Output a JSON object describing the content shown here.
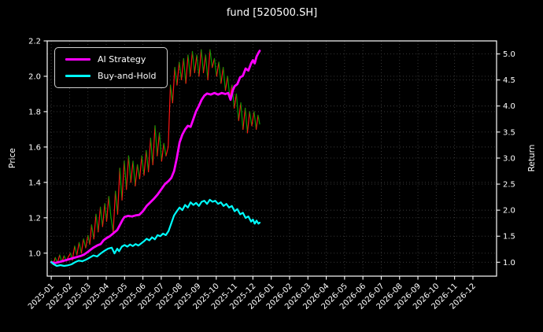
{
  "title": "fund [520500.SH]",
  "chart_data": {
    "type": "line",
    "title": "fund [520500.SH]",
    "background_color": "#000000",
    "text_color": "#ffffff",
    "grid_color": "#3d3d3d",
    "spine_color": "#ffffff",
    "grid": "on",
    "legend_position": "upper left",
    "x_axis": {
      "unit": "months since 2025-01",
      "range": [
        -0.22,
        24.29
      ],
      "tick_labels": [
        "2025-01",
        "2025-02",
        "2025-03",
        "2025-04",
        "2025-05",
        "2025-06",
        "2025-07",
        "2025-08",
        "2025-09",
        "2025-10",
        "2025-11",
        "2025-12",
        "2026-01",
        "2026-02",
        "2026-03",
        "2026-04",
        "2026-05",
        "2026-06",
        "2026-07",
        "2026-08",
        "2026-09",
        "2026-10",
        "2026-11",
        "2026-12"
      ]
    },
    "left_axis": {
      "label": "Price",
      "range": [
        0.87,
        2.2
      ],
      "ticks": [
        1.0,
        1.2,
        1.4,
        1.6,
        1.8,
        2.0,
        2.2
      ],
      "tick_labels": [
        "1.0",
        "1.2",
        "1.4",
        "1.6",
        "1.8",
        "2.0",
        "2.2"
      ]
    },
    "right_axis": {
      "label": "Return",
      "range": [
        0.733,
        5.25
      ],
      "ticks": [
        1.0,
        1.5,
        2.0,
        2.5,
        3.0,
        3.5,
        4.0,
        4.5,
        5.0
      ],
      "tick_labels": [
        "1.0",
        "1.5",
        "2.0",
        "2.5",
        "3.0",
        "3.5",
        "4.0",
        "4.5",
        "5.0"
      ]
    },
    "series": [
      {
        "name": "price",
        "axis": "left",
        "style": "updown",
        "up_color": "#ff1414",
        "down_color": "#00a000",
        "width": 1.2,
        "points": [
          [
            0,
            0.96
          ],
          [
            0.1,
            0.935
          ],
          [
            0.22,
            0.975
          ],
          [
            0.34,
            0.945
          ],
          [
            0.46,
            0.99
          ],
          [
            0.58,
            0.95
          ],
          [
            0.7,
            0.985
          ],
          [
            0.82,
            0.955
          ],
          [
            0.94,
            0.98
          ],
          [
            1.05,
            1.0
          ],
          [
            1.15,
            0.96
          ],
          [
            1.28,
            1.04
          ],
          [
            1.4,
            0.99
          ],
          [
            1.52,
            1.06
          ],
          [
            1.64,
            1.0
          ],
          [
            1.76,
            1.08
          ],
          [
            1.88,
            1.03
          ],
          [
            2.0,
            1.1
          ],
          [
            2.1,
            1.05
          ],
          [
            2.2,
            1.16
          ],
          [
            2.32,
            1.08
          ],
          [
            2.44,
            1.22
          ],
          [
            2.56,
            1.12
          ],
          [
            2.68,
            1.26
          ],
          [
            2.8,
            1.15
          ],
          [
            2.92,
            1.28
          ],
          [
            3.02,
            1.18
          ],
          [
            3.14,
            1.32
          ],
          [
            3.26,
            1.2
          ],
          [
            3.38,
            1.12
          ],
          [
            3.5,
            1.35
          ],
          [
            3.62,
            1.22
          ],
          [
            3.74,
            1.48
          ],
          [
            3.86,
            1.3
          ],
          [
            3.98,
            1.52
          ],
          [
            4.1,
            1.36
          ],
          [
            4.22,
            1.55
          ],
          [
            4.34,
            1.4
          ],
          [
            4.46,
            1.52
          ],
          [
            4.58,
            1.38
          ],
          [
            4.7,
            1.5
          ],
          [
            4.82,
            1.42
          ],
          [
            4.94,
            1.55
          ],
          [
            5.06,
            1.44
          ],
          [
            5.18,
            1.58
          ],
          [
            5.3,
            1.46
          ],
          [
            5.42,
            1.65
          ],
          [
            5.54,
            1.5
          ],
          [
            5.66,
            1.72
          ],
          [
            5.78,
            1.55
          ],
          [
            5.9,
            1.68
          ],
          [
            6.02,
            1.52
          ],
          [
            6.14,
            1.62
          ],
          [
            6.26,
            1.55
          ],
          [
            6.38,
            1.6
          ],
          [
            6.5,
            1.95
          ],
          [
            6.62,
            1.85
          ],
          [
            6.74,
            2.05
          ],
          [
            6.86,
            1.95
          ],
          [
            6.98,
            2.08
          ],
          [
            7.1,
            1.98
          ],
          [
            7.22,
            2.1
          ],
          [
            7.34,
            1.96
          ],
          [
            7.46,
            2.12
          ],
          [
            7.58,
            2.0
          ],
          [
            7.7,
            2.14
          ],
          [
            7.82,
            2.02
          ],
          [
            7.94,
            2.12
          ],
          [
            8.06,
            2.0
          ],
          [
            8.18,
            2.15
          ],
          [
            8.3,
            2.02
          ],
          [
            8.42,
            2.12
          ],
          [
            8.54,
            1.98
          ],
          [
            8.66,
            2.15
          ],
          [
            8.78,
            2.05
          ],
          [
            8.9,
            2.1
          ],
          [
            9.02,
            2.0
          ],
          [
            9.14,
            2.08
          ],
          [
            9.26,
            1.96
          ],
          [
            9.38,
            2.05
          ],
          [
            9.5,
            1.92
          ],
          [
            9.62,
            2.0
          ],
          [
            9.74,
            1.88
          ],
          [
            9.86,
            1.95
          ],
          [
            9.98,
            1.82
          ],
          [
            10.1,
            1.9
          ],
          [
            10.22,
            1.75
          ],
          [
            10.34,
            1.85
          ],
          [
            10.46,
            1.7
          ],
          [
            10.58,
            1.82
          ],
          [
            10.7,
            1.68
          ],
          [
            10.82,
            1.8
          ],
          [
            10.94,
            1.72
          ],
          [
            11.06,
            1.8
          ],
          [
            11.18,
            1.7
          ],
          [
            11.28,
            1.78
          ],
          [
            11.37,
            1.73
          ]
        ]
      },
      {
        "name": "AI Strategy",
        "axis": "right",
        "color": "#ff00ff",
        "width": 2.8,
        "points": [
          [
            0,
            1.0
          ],
          [
            0.2,
            0.985
          ],
          [
            0.4,
            1.0
          ],
          [
            0.6,
            1.02
          ],
          [
            0.8,
            1.04
          ],
          [
            1.0,
            1.06
          ],
          [
            1.2,
            1.08
          ],
          [
            1.4,
            1.1
          ],
          [
            1.6,
            1.12
          ],
          [
            1.8,
            1.15
          ],
          [
            2.0,
            1.2
          ],
          [
            2.15,
            1.24
          ],
          [
            2.3,
            1.28
          ],
          [
            2.5,
            1.32
          ],
          [
            2.7,
            1.35
          ],
          [
            2.85,
            1.42
          ],
          [
            3.0,
            1.46
          ],
          [
            3.2,
            1.5
          ],
          [
            3.4,
            1.56
          ],
          [
            3.6,
            1.62
          ],
          [
            3.75,
            1.72
          ],
          [
            3.9,
            1.82
          ],
          [
            4.0,
            1.87
          ],
          [
            4.2,
            1.89
          ],
          [
            4.4,
            1.88
          ],
          [
            4.6,
            1.9
          ],
          [
            4.8,
            1.91
          ],
          [
            5.0,
            1.98
          ],
          [
            5.2,
            2.08
          ],
          [
            5.4,
            2.15
          ],
          [
            5.6,
            2.22
          ],
          [
            5.8,
            2.3
          ],
          [
            6.0,
            2.4
          ],
          [
            6.2,
            2.5
          ],
          [
            6.4,
            2.56
          ],
          [
            6.55,
            2.62
          ],
          [
            6.7,
            2.75
          ],
          [
            6.85,
            3.0
          ],
          [
            7.0,
            3.3
          ],
          [
            7.15,
            3.45
          ],
          [
            7.3,
            3.55
          ],
          [
            7.45,
            3.62
          ],
          [
            7.6,
            3.6
          ],
          [
            7.75,
            3.75
          ],
          [
            7.9,
            3.9
          ],
          [
            8.05,
            4.0
          ],
          [
            8.2,
            4.12
          ],
          [
            8.35,
            4.2
          ],
          [
            8.5,
            4.24
          ],
          [
            8.7,
            4.22
          ],
          [
            8.9,
            4.25
          ],
          [
            9.1,
            4.22
          ],
          [
            9.3,
            4.25
          ],
          [
            9.5,
            4.23
          ],
          [
            9.65,
            4.25
          ],
          [
            9.78,
            4.12
          ],
          [
            9.9,
            4.3
          ],
          [
            10.0,
            4.38
          ],
          [
            10.15,
            4.42
          ],
          [
            10.3,
            4.55
          ],
          [
            10.45,
            4.58
          ],
          [
            10.6,
            4.72
          ],
          [
            10.75,
            4.68
          ],
          [
            10.9,
            4.82
          ],
          [
            11.0,
            4.88
          ],
          [
            11.1,
            4.82
          ],
          [
            11.2,
            4.95
          ],
          [
            11.3,
            5.02
          ],
          [
            11.37,
            5.06
          ]
        ]
      },
      {
        "name": "Buy-and-Hold",
        "axis": "right",
        "color": "#00ffff",
        "width": 2.2,
        "points": [
          [
            0,
            1.0
          ],
          [
            0.15,
            0.96
          ],
          [
            0.3,
            0.93
          ],
          [
            0.5,
            0.945
          ],
          [
            0.7,
            0.93
          ],
          [
            0.9,
            0.94
          ],
          [
            1.1,
            0.96
          ],
          [
            1.3,
            1.0
          ],
          [
            1.5,
            1.03
          ],
          [
            1.7,
            1.02
          ],
          [
            1.9,
            1.05
          ],
          [
            2.1,
            1.09
          ],
          [
            2.3,
            1.13
          ],
          [
            2.5,
            1.11
          ],
          [
            2.7,
            1.17
          ],
          [
            2.9,
            1.22
          ],
          [
            3.1,
            1.26
          ],
          [
            3.3,
            1.28
          ],
          [
            3.45,
            1.17
          ],
          [
            3.6,
            1.26
          ],
          [
            3.7,
            1.21
          ],
          [
            3.85,
            1.3
          ],
          [
            4.0,
            1.33
          ],
          [
            4.15,
            1.3
          ],
          [
            4.3,
            1.34
          ],
          [
            4.45,
            1.31
          ],
          [
            4.6,
            1.35
          ],
          [
            4.75,
            1.32
          ],
          [
            4.9,
            1.36
          ],
          [
            5.05,
            1.4
          ],
          [
            5.2,
            1.45
          ],
          [
            5.35,
            1.42
          ],
          [
            5.5,
            1.48
          ],
          [
            5.65,
            1.44
          ],
          [
            5.8,
            1.52
          ],
          [
            5.95,
            1.5
          ],
          [
            6.1,
            1.55
          ],
          [
            6.25,
            1.52
          ],
          [
            6.4,
            1.6
          ],
          [
            6.55,
            1.75
          ],
          [
            6.7,
            1.9
          ],
          [
            6.85,
            1.98
          ],
          [
            7.0,
            2.05
          ],
          [
            7.15,
            2.0
          ],
          [
            7.3,
            2.1
          ],
          [
            7.45,
            2.05
          ],
          [
            7.6,
            2.15
          ],
          [
            7.75,
            2.1
          ],
          [
            7.9,
            2.14
          ],
          [
            8.05,
            2.08
          ],
          [
            8.2,
            2.16
          ],
          [
            8.35,
            2.18
          ],
          [
            8.5,
            2.12
          ],
          [
            8.65,
            2.2
          ],
          [
            8.8,
            2.16
          ],
          [
            8.95,
            2.18
          ],
          [
            9.1,
            2.12
          ],
          [
            9.25,
            2.15
          ],
          [
            9.4,
            2.08
          ],
          [
            9.55,
            2.12
          ],
          [
            9.7,
            2.05
          ],
          [
            9.85,
            2.08
          ],
          [
            10.0,
            1.98
          ],
          [
            10.15,
            2.02
          ],
          [
            10.3,
            1.92
          ],
          [
            10.45,
            1.95
          ],
          [
            10.6,
            1.85
          ],
          [
            10.75,
            1.88
          ],
          [
            10.9,
            1.78
          ],
          [
            11.0,
            1.82
          ],
          [
            11.1,
            1.74
          ],
          [
            11.2,
            1.8
          ],
          [
            11.3,
            1.74
          ],
          [
            11.37,
            1.76
          ]
        ]
      }
    ]
  }
}
